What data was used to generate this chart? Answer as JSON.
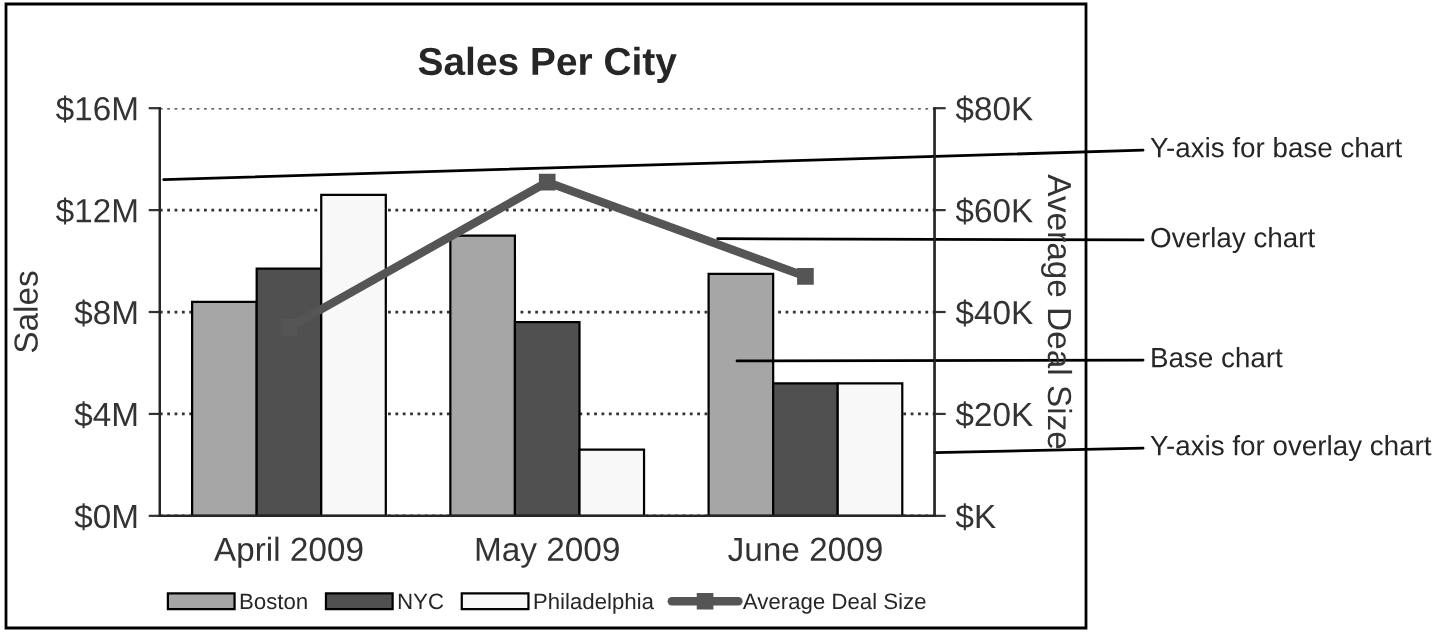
{
  "chart_data": {
    "type": "bar",
    "title": "Sales Per City",
    "ylabel": "Sales",
    "y2label": "Average Deal Size",
    "categories": [
      "April 2009",
      "May 2009",
      "June 2009"
    ],
    "series": [
      {
        "name": "Boston",
        "color": "#a6a6a6",
        "values": [
          8.4,
          11.0,
          9.5
        ]
      },
      {
        "name": "NYC",
        "color": "#505050",
        "values": [
          9.7,
          7.6,
          5.2
        ]
      },
      {
        "name": "Philadelphia",
        "color": "#f8f8f8",
        "values": [
          12.6,
          2.6,
          5.2
        ]
      },
      {
        "name": "Average Deal Size",
        "type": "line",
        "axis": "y2",
        "color": "#555555",
        "marker": "square",
        "values": [
          37,
          65.5,
          47
        ]
      }
    ],
    "ylim": [
      0,
      16
    ],
    "yticks": [
      {
        "value": 0,
        "label": "$0M"
      },
      {
        "value": 4,
        "label": "$4M"
      },
      {
        "value": 8,
        "label": "$8M"
      },
      {
        "value": 12,
        "label": "$12M"
      },
      {
        "value": 16,
        "label": "$16M"
      }
    ],
    "y2lim": [
      0,
      80
    ],
    "y2ticks": [
      {
        "value": 0,
        "label": "$K"
      },
      {
        "value": 20,
        "label": "$20K"
      },
      {
        "value": 40,
        "label": "$40K"
      },
      {
        "value": 60,
        "label": "$60K"
      },
      {
        "value": 80,
        "label": "$80K"
      }
    ],
    "grid": "y",
    "legend": "bottom",
    "annotations": [
      "Y-axis for base chart",
      "Overlay chart",
      "Base chart",
      "Y-axis for overlay chart"
    ]
  }
}
